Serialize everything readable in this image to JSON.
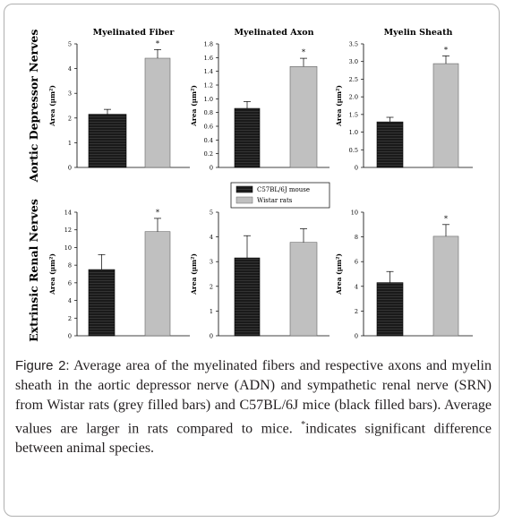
{
  "figure": {
    "label": "Figure 2:",
    "caption_line1": " Average area of the myelinated fibers and respective axons and myelin sheath in the aortic depressor nerve (ADN) and sympathetic renal nerve (SRN) from Wistar rats (grey filled bars) and C57BL/6J mice (black filled bars). Average values are larger in rats compared to mice. ",
    "caption_star": "*",
    "caption_end": "indicates significant difference between animal species."
  },
  "row_labels": [
    "Aortic Depressor Nerves",
    "Extrinsic Renal Nerves"
  ],
  "legend": {
    "items": [
      "C57BL/6J mouse",
      "Wistar rats"
    ]
  },
  "colors": {
    "mouse": "#1a1a1a",
    "rat": "#c0c0c0",
    "stripe": "#3a3a3a"
  },
  "chart_data": [
    {
      "type": "bar",
      "title": "Myelinated Fiber",
      "ylabel": "Area (µm²)",
      "ylim": [
        0,
        5
      ],
      "yticks": [
        0,
        1,
        2,
        3,
        4,
        5
      ],
      "categories": [
        "C57BL/6J mouse",
        "Wistar rats"
      ],
      "values": [
        2.15,
        4.42
      ],
      "errors": [
        0.2,
        0.35
      ],
      "significant": [
        false,
        true
      ]
    },
    {
      "type": "bar",
      "title": "Myelinated Axon",
      "ylabel": "Area (µm²)",
      "ylim": [
        0,
        1.8
      ],
      "yticks": [
        0,
        0.2,
        0.4,
        0.6,
        0.8,
        1.0,
        1.2,
        1.4,
        1.6,
        1.8
      ],
      "categories": [
        "C57BL/6J mouse",
        "Wistar rats"
      ],
      "values": [
        0.86,
        1.47
      ],
      "errors": [
        0.1,
        0.12
      ],
      "significant": [
        false,
        true
      ]
    },
    {
      "type": "bar",
      "title": "Myelin Sheath",
      "ylabel": "Area (µm²)",
      "ylim": [
        0,
        3.5
      ],
      "yticks": [
        0,
        0.5,
        1.0,
        1.5,
        2.0,
        2.5,
        3.0,
        3.5
      ],
      "categories": [
        "C57BL/6J mouse",
        "Wistar rats"
      ],
      "values": [
        1.29,
        2.94
      ],
      "errors": [
        0.13,
        0.22
      ],
      "significant": [
        false,
        true
      ]
    },
    {
      "type": "bar",
      "title": "",
      "ylabel": "Area (µm²)",
      "ylim": [
        0,
        14
      ],
      "yticks": [
        0,
        2,
        4,
        6,
        8,
        10,
        12,
        14
      ],
      "categories": [
        "C57BL/6J mouse",
        "Wistar rats"
      ],
      "values": [
        7.5,
        11.8
      ],
      "errors": [
        1.7,
        1.5
      ],
      "significant": [
        false,
        true
      ]
    },
    {
      "type": "bar",
      "title": "",
      "ylabel": "Area (µm²)",
      "ylim": [
        0,
        5
      ],
      "yticks": [
        0,
        1,
        2,
        3,
        4,
        5
      ],
      "categories": [
        "C57BL/6J mouse",
        "Wistar rats"
      ],
      "values": [
        3.15,
        3.78
      ],
      "errors": [
        0.9,
        0.55
      ],
      "significant": [
        false,
        false
      ]
    },
    {
      "type": "bar",
      "title": "",
      "ylabel": "Area (µm²)",
      "ylim": [
        0,
        10
      ],
      "yticks": [
        0,
        2,
        4,
        6,
        8,
        10
      ],
      "categories": [
        "C57BL/6J mouse",
        "Wistar rats"
      ],
      "values": [
        4.3,
        8.05
      ],
      "errors": [
        0.9,
        0.95
      ],
      "significant": [
        false,
        true
      ]
    }
  ]
}
